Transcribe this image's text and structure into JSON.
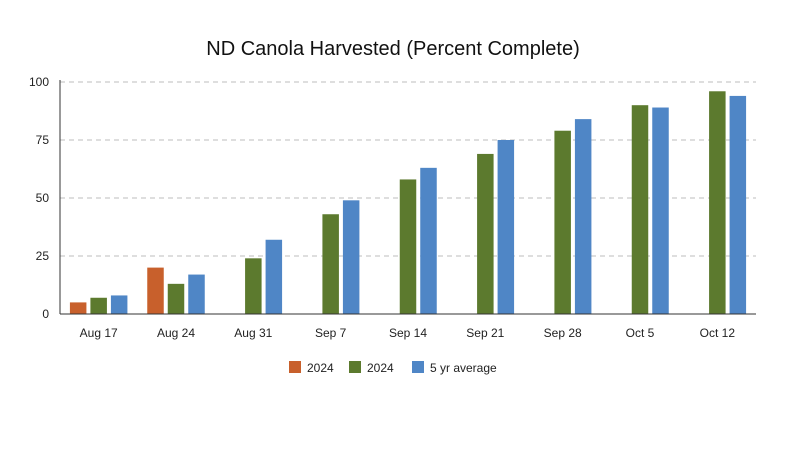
{
  "chart_data": {
    "type": "bar",
    "title": "ND Canola Harvested (Percent Complete)",
    "xlabel": "",
    "ylabel": "",
    "ylim": [
      0,
      100
    ],
    "yticks": [
      0,
      25,
      50,
      75,
      100
    ],
    "grid": true,
    "legend_position": "bottom",
    "categories": [
      "Aug 17",
      "Aug 24",
      "Aug 31",
      "Sep 7",
      "Sep 14",
      "Sep 21",
      "Sep 28",
      "Oct 5",
      "Oct 12"
    ],
    "series": [
      {
        "name": "2024",
        "color": "#c8602c",
        "values": [
          5,
          20,
          null,
          null,
          null,
          null,
          null,
          null,
          null
        ]
      },
      {
        "name": "2024",
        "color": "#5c7a2e",
        "values": [
          7,
          13,
          24,
          43,
          58,
          69,
          79,
          90,
          96
        ]
      },
      {
        "name": "5 yr average",
        "color": "#4f86c6",
        "values": [
          8,
          17,
          32,
          49,
          63,
          75,
          84,
          89,
          94
        ]
      }
    ]
  }
}
